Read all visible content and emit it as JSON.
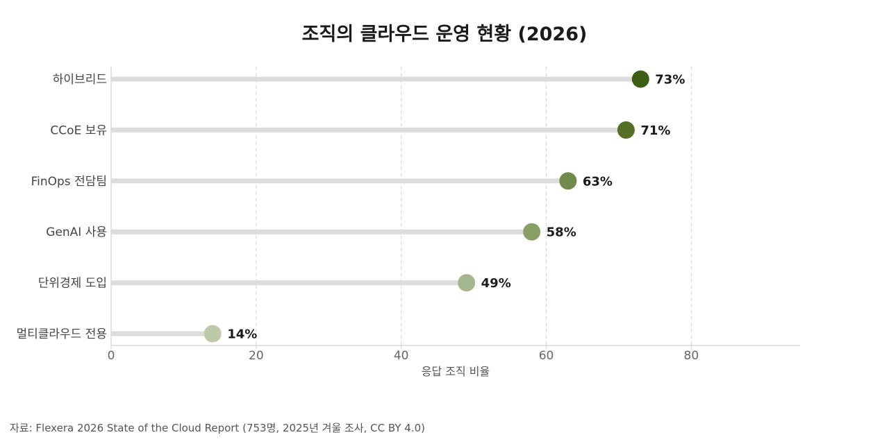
{
  "chart_data": {
    "type": "lollipop",
    "orientation": "horizontal",
    "title": "조직의 클라우드 운영 현황 (2026)",
    "xlabel": "응답 조직 비율",
    "ylabel": "",
    "xlim": [
      0,
      95
    ],
    "xticks": [
      0,
      20,
      40,
      60,
      80
    ],
    "grid": "x-dashed",
    "value_suffix": "%",
    "categories": [
      "하이브리드",
      "CCoE 보유",
      "FinOps 전담팀",
      "GenAI 사용",
      "단위경제 도입",
      "멀티클라우드 전용"
    ],
    "values": [
      73,
      71,
      63,
      58,
      49,
      14
    ],
    "colors": [
      "#3d5f14",
      "#557026",
      "#6f8a4a",
      "#889f66",
      "#a3b68d",
      "#bccaa9"
    ],
    "stem_color": "#dcdcdc",
    "source": "자료: Flexera 2026 State of the Cloud Report (753명, 2025년 겨울 조사, CC BY 4.0)"
  }
}
